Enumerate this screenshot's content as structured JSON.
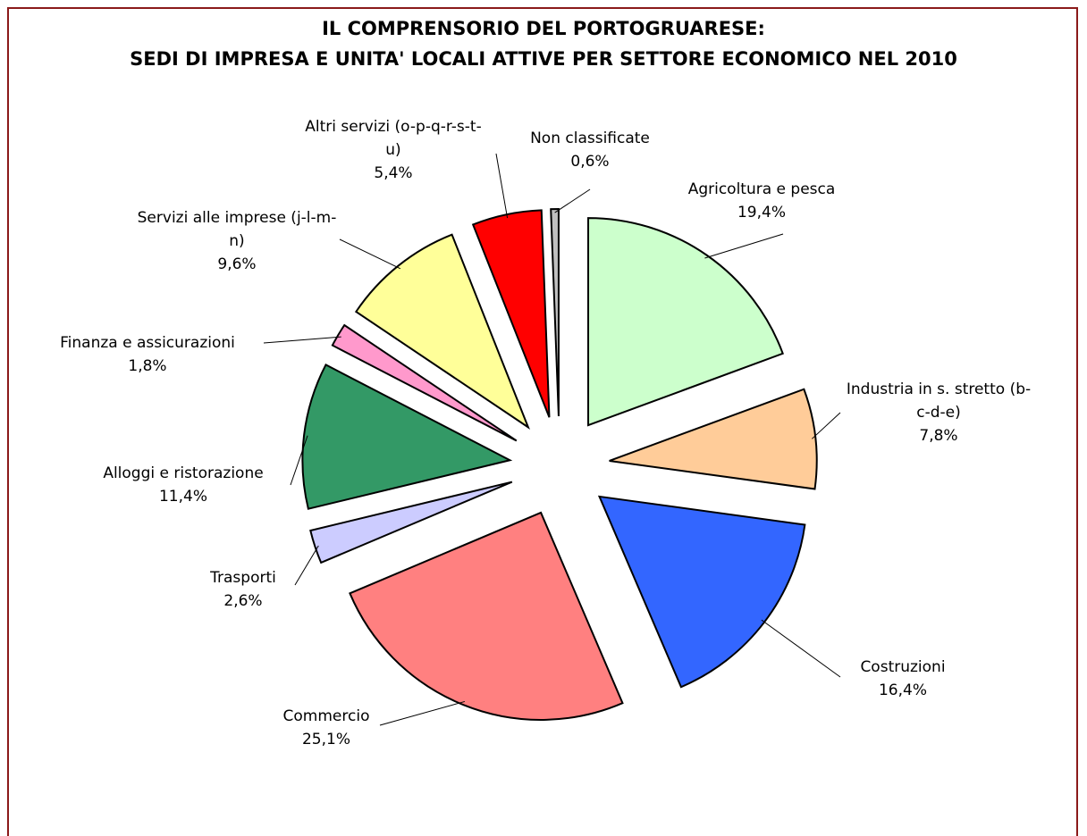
{
  "chart_data": {
    "type": "pie",
    "title": "IL COMPRENSORIO DEL PORTOGRUARESE:",
    "subtitle": "SEDI DI IMPRESA E UNITA' LOCALI ATTIVE PER SETTORE ECONOMICO NEL 2010",
    "categories": [
      "Agricoltura e pesca",
      "Industria in s. stretto (b-c-d-e)",
      "Costruzioni",
      "Commercio",
      "Trasporti",
      "Alloggi e ristorazione",
      "Finanza e assicurazioni",
      "Servizi alle imprese (j-l-m-n)",
      "Altri servizi (o-p-q-r-s-t-u)",
      "Non classificate"
    ],
    "values": [
      19.4,
      7.8,
      16.4,
      25.1,
      2.6,
      11.4,
      1.8,
      9.6,
      5.4,
      0.6
    ],
    "value_labels": [
      "19,4%",
      "7,8%",
      "16,4%",
      "25,1%",
      "2,6%",
      "11,4%",
      "1,8%",
      "9,6%",
      "5,4%",
      "0,6%"
    ],
    "colors": [
      "#ccffcc",
      "#ffcc99",
      "#3366ff",
      "#ff8080",
      "#ccccff",
      "#339966",
      "#ff99cc",
      "#ffff99",
      "#ff0000",
      "#c0c0c0"
    ]
  }
}
